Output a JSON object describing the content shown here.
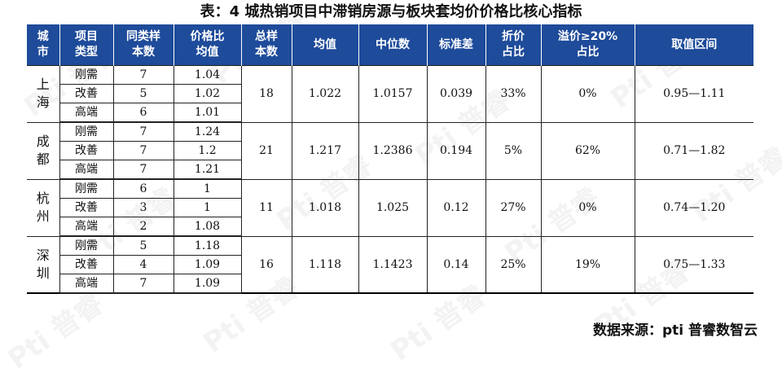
{
  "title": "表：4 城热销项目中滞销房源与板块套均价价格比核心指标",
  "watermark_text": "Pti 普睿",
  "headers": [
    {
      "line1": "城",
      "line2": "市"
    },
    {
      "line1": "项目",
      "line2": "类型"
    },
    {
      "line1": "同类样",
      "line2": "本数"
    },
    {
      "line1": "价格比",
      "line2": "均值"
    },
    {
      "line1": "总样",
      "line2": "本数"
    },
    {
      "line1": "均值",
      "line2": ""
    },
    {
      "line1": "中位数",
      "line2": ""
    },
    {
      "line1": "标准差",
      "line2": ""
    },
    {
      "line1": "折价",
      "line2": "占比"
    },
    {
      "line1": "溢价≥20%",
      "line2": "占比"
    },
    {
      "line1": "取值区间",
      "line2": ""
    }
  ],
  "groups": [
    {
      "city": [
        "上",
        "海"
      ],
      "rows": [
        {
          "type": "刚需",
          "count": "7",
          "ratio": "1.04"
        },
        {
          "type": "改善",
          "count": "5",
          "ratio": "1.02"
        },
        {
          "type": "高端",
          "count": "6",
          "ratio": "1.01"
        }
      ],
      "total": "18",
      "mean": "1.022",
      "median": "1.0157",
      "std": "0.039",
      "discount": "33%",
      "premium": "0%",
      "range": "0.95—1.11"
    },
    {
      "city": [
        "成",
        "都"
      ],
      "rows": [
        {
          "type": "刚需",
          "count": "7",
          "ratio": "1.24"
        },
        {
          "type": "改善",
          "count": "7",
          "ratio": "1.2"
        },
        {
          "type": "高端",
          "count": "7",
          "ratio": "1.21"
        }
      ],
      "total": "21",
      "mean": "1.217",
      "median": "1.2386",
      "std": "0.194",
      "discount": "5%",
      "premium": "62%",
      "range": "0.71—1.82"
    },
    {
      "city": [
        "杭",
        "州"
      ],
      "rows": [
        {
          "type": "刚需",
          "count": "6",
          "ratio": "1"
        },
        {
          "type": "改善",
          "count": "3",
          "ratio": "1"
        },
        {
          "type": "高端",
          "count": "2",
          "ratio": "1.08"
        }
      ],
      "total": "11",
      "mean": "1.018",
      "median": "1.025",
      "std": "0.12",
      "discount": "27%",
      "premium": "0%",
      "range": "0.74—1.20"
    },
    {
      "city": [
        "深",
        "圳"
      ],
      "rows": [
        {
          "type": "刚需",
          "count": "5",
          "ratio": "1.18"
        },
        {
          "type": "改善",
          "count": "4",
          "ratio": "1.09"
        },
        {
          "type": "高端",
          "count": "7",
          "ratio": "1.09"
        }
      ],
      "total": "16",
      "mean": "1.118",
      "median": "1.1423",
      "std": "0.14",
      "discount": "25%",
      "premium": "19%",
      "range": "0.75—1.33"
    }
  ],
  "source": "数据来源：pti 普睿数智云"
}
